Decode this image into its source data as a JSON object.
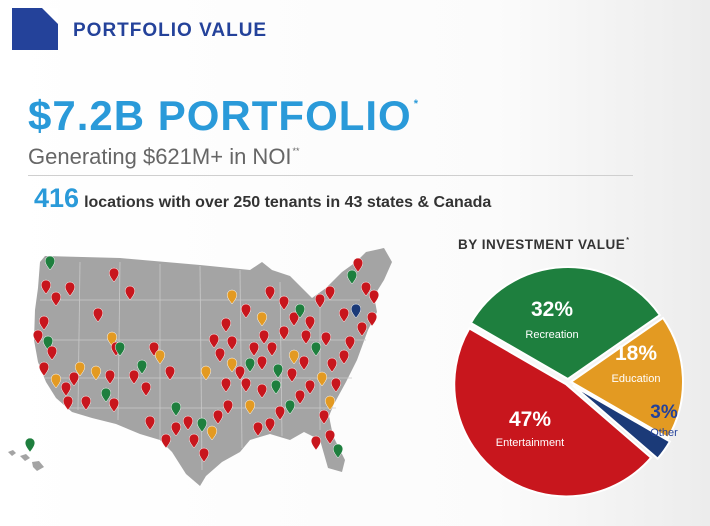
{
  "header": {
    "title": "PORTFOLIO VALUE"
  },
  "headline": {
    "text": "$7.2B PORTFOLIO",
    "mark": "*"
  },
  "subheadline": {
    "text": "Generating $621M+ in NOI",
    "mark": "**"
  },
  "stats": {
    "number": "416",
    "text": "locations with over 250 tenants in 43 states & Canada"
  },
  "colors": {
    "navy": "#24429a",
    "blue": "#2a9ad9",
    "recreation": "#1e7f3e",
    "education": "#e39a22",
    "entertainment": "#c8161d",
    "other": "#1b3a78",
    "map": "#a2a2a2"
  },
  "map": {
    "name": "us-locations-map",
    "pin_colors": [
      "entertainment",
      "recreation",
      "education",
      "other"
    ]
  },
  "chart_data": {
    "type": "pie",
    "title": "BY INVESTMENT VALUE",
    "title_mark": "*",
    "slices": [
      {
        "name": "Recreation",
        "value": 32,
        "label": "32%",
        "color": "#1e7f3e"
      },
      {
        "name": "Education",
        "value": 18,
        "label": "18%",
        "color": "#e39a22"
      },
      {
        "name": "Other",
        "value": 3,
        "label": "3%",
        "color": "#1b3a78"
      },
      {
        "name": "Entertainment",
        "value": 47,
        "label": "47%",
        "color": "#c8161d"
      }
    ]
  }
}
